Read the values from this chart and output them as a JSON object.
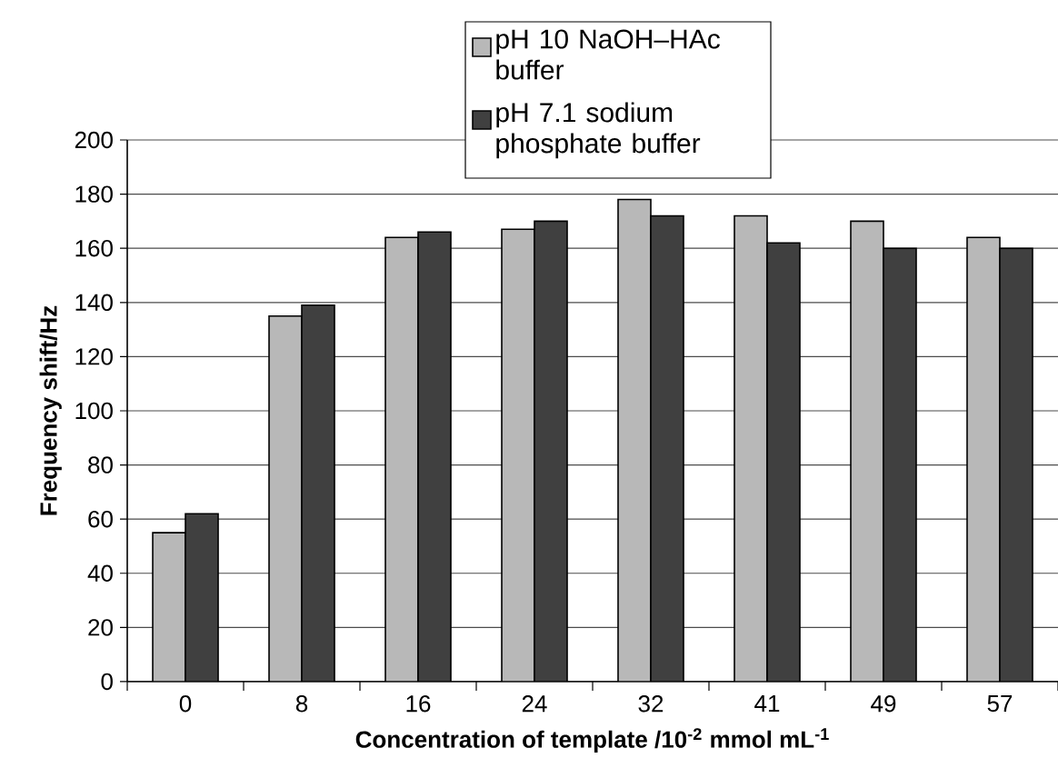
{
  "chart_data": {
    "type": "bar",
    "xlabel": "Concentration of template /10$^{-2}$ mmol mL$^{-1}$",
    "ylabel": "Frequency shift/Hz",
    "categories": [
      "0",
      "8",
      "16",
      "24",
      "32",
      "41",
      "49",
      "57"
    ],
    "series": [
      {
        "name": "pH 10 NaOH–HAc buffer",
        "color": "#b8b8b8",
        "values": [
          55,
          135,
          164,
          167,
          178,
          172,
          170,
          164
        ]
      },
      {
        "name": "pH 7.1 sodium phosphate buffer",
        "color": "#404040",
        "values": [
          62,
          139,
          166,
          170,
          172,
          162,
          160,
          160
        ]
      }
    ],
    "ylim": [
      0,
      200
    ],
    "yticks": [
      0,
      20,
      40,
      60,
      80,
      100,
      120,
      140,
      160,
      180,
      200
    ],
    "grid": "y",
    "legend": "top"
  }
}
